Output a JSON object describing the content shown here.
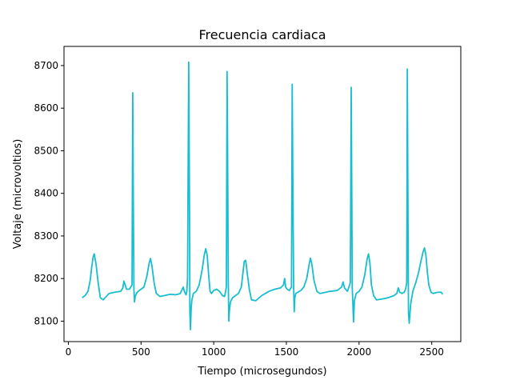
{
  "chart_data": {
    "type": "line",
    "title": "Frecuencia cardiaca",
    "xlabel": "Tiempo (microsegundos)",
    "ylabel": "Voltaje (microvoltios)",
    "xlim": [
      -30,
      2700
    ],
    "ylim": [
      8052,
      8745
    ],
    "xticks": [
      0,
      500,
      1000,
      1500,
      2000,
      2500
    ],
    "yticks": [
      8100,
      8200,
      8300,
      8400,
      8500,
      8600,
      8700
    ],
    "grid": false,
    "colors": {
      "line": "#17becf",
      "axes": "#000000",
      "background": "#ffffff"
    },
    "series": [
      {
        "x": [
          95,
          115,
          135,
          150,
          160,
          170,
          178,
          190,
          205,
          220,
          240,
          280,
          320,
          360,
          375,
          382,
          390,
          400,
          420,
          438,
          443,
          447,
          451,
          455,
          460,
          468,
          480,
          500,
          520,
          540,
          555,
          565,
          575,
          590,
          605,
          630,
          660,
          700,
          740,
          770,
          790,
          800,
          810,
          815,
          820,
          828,
          833,
          836,
          840,
          845,
          850,
          860,
          880,
          900,
          920,
          935,
          945,
          955,
          965,
          975,
          985,
          1000,
          1020,
          1040,
          1060,
          1075,
          1087,
          1092,
          1096,
          1100,
          1104,
          1108,
          1115,
          1130,
          1150,
          1170,
          1190,
          1200,
          1210,
          1220,
          1230,
          1245,
          1260,
          1290,
          1330,
          1380,
          1420,
          1460,
          1480,
          1488,
          1495,
          1505,
          1520,
          1535,
          1540,
          1545,
          1550,
          1554,
          1558,
          1565,
          1580,
          1600,
          1620,
          1640,
          1655,
          1665,
          1675,
          1690,
          1710,
          1730,
          1760,
          1800,
          1850,
          1880,
          1890,
          1900,
          1920,
          1940,
          1946,
          1950,
          1953,
          1957,
          1962,
          1968,
          1980,
          2000,
          2020,
          2040,
          2055,
          2065,
          2075,
          2085,
          2100,
          2120,
          2160,
          2200,
          2240,
          2260,
          2270,
          2280,
          2295,
          2310,
          2320,
          2328,
          2332,
          2336,
          2340,
          2345,
          2355,
          2370,
          2390,
          2410,
          2425,
          2440,
          2450,
          2460,
          2470,
          2480,
          2495,
          2510,
          2530,
          2550,
          2565,
          2575
        ],
        "y": [
          8155,
          8160,
          8170,
          8195,
          8225,
          8250,
          8258,
          8235,
          8190,
          8155,
          8150,
          8165,
          8168,
          8170,
          8178,
          8194,
          8186,
          8175,
          8175,
          8185,
          8636,
          8380,
          8175,
          8145,
          8158,
          8165,
          8170,
          8175,
          8180,
          8205,
          8235,
          8247,
          8230,
          8190,
          8165,
          8158,
          8160,
          8163,
          8162,
          8165,
          8180,
          8168,
          8162,
          8170,
          8200,
          8708,
          8400,
          8120,
          8080,
          8130,
          8150,
          8165,
          8170,
          8185,
          8220,
          8255,
          8270,
          8255,
          8210,
          8170,
          8165,
          8172,
          8175,
          8170,
          8160,
          8158,
          8180,
          8686,
          8480,
          8200,
          8100,
          8125,
          8145,
          8155,
          8160,
          8165,
          8180,
          8210,
          8240,
          8243,
          8215,
          8175,
          8150,
          8148,
          8160,
          8170,
          8175,
          8178,
          8185,
          8200,
          8180,
          8175,
          8172,
          8180,
          8656,
          8400,
          8180,
          8122,
          8155,
          8165,
          8168,
          8172,
          8180,
          8200,
          8230,
          8248,
          8235,
          8195,
          8170,
          8165,
          8167,
          8170,
          8172,
          8180,
          8192,
          8178,
          8170,
          8190,
          8649,
          8400,
          8180,
          8145,
          8098,
          8148,
          8165,
          8170,
          8180,
          8210,
          8245,
          8258,
          8235,
          8185,
          8160,
          8150,
          8152,
          8155,
          8160,
          8165,
          8178,
          8168,
          8165,
          8168,
          8175,
          8190,
          8692,
          8400,
          8120,
          8095,
          8140,
          8170,
          8190,
          8215,
          8240,
          8262,
          8272,
          8255,
          8215,
          8185,
          8168,
          8165,
          8167,
          8168,
          8168,
          8163
        ]
      }
    ]
  }
}
